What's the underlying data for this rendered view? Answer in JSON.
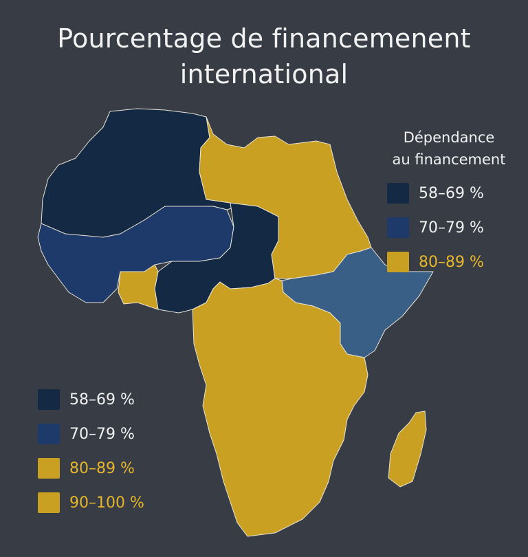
{
  "title_line1": "Pourcentage de financemenent",
  "title_line2": "international",
  "legend_top": {
    "title_line1": "Dépendance",
    "title_line2": "au financement",
    "items": [
      {
        "label": "58–69 %",
        "color": "#142a44",
        "text_color": "#f2f2f2"
      },
      {
        "label": "70–79 %",
        "color": "#1d3a6a",
        "text_color": "#f2f2f2"
      },
      {
        "label": "80–89 %",
        "color": "#c9a022",
        "text_color": "#e7b62a"
      }
    ]
  },
  "legend_bottom": {
    "items": [
      {
        "label": "58–69 %",
        "color": "#142a44",
        "text_color": "#f2f2f2"
      },
      {
        "label": "70–79 %",
        "color": "#1d3a6a",
        "text_color": "#f2f2f2"
      },
      {
        "label": "80–89 %",
        "color": "#c9a022",
        "text_color": "#e7b62a"
      },
      {
        "label": "90–100 %",
        "color": "#c9a022",
        "text_color": "#e7b62a"
      }
    ]
  },
  "map_colors": {
    "dark_navy": "#142a44",
    "navy": "#1d3a6a",
    "steel_blue": "#3a5f86",
    "gold": "#c9a022",
    "border": "#e9e4d6"
  },
  "regions": [
    {
      "id": "north-west-africa",
      "category": "58–69 %",
      "color_key": "dark_navy"
    },
    {
      "id": "sahel-west",
      "category": "70–79 %",
      "color_key": "navy"
    },
    {
      "id": "chad-nigeria",
      "category": "58–69 %",
      "color_key": "dark_navy"
    },
    {
      "id": "ghana-togo",
      "category": "80–89 %",
      "color_key": "gold"
    },
    {
      "id": "libya-egypt-sudan",
      "category": "80–89 %",
      "color_key": "gold"
    },
    {
      "id": "horn-of-africa",
      "category": "70–79 %",
      "color_key": "steel_blue"
    },
    {
      "id": "central-southern-africa",
      "category": "80–89 %",
      "color_key": "gold"
    },
    {
      "id": "madagascar",
      "category": "80–89 %",
      "color_key": "gold"
    }
  ]
}
